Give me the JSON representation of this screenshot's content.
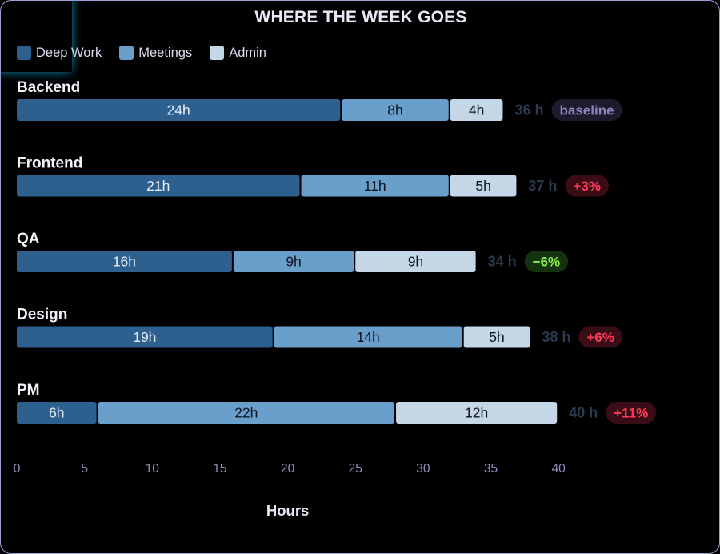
{
  "chart_data": {
    "type": "bar",
    "orientation": "horizontal",
    "stacked": true,
    "title": "WHERE THE WEEK GOES",
    "xlabel": "Hours",
    "ylabel": "",
    "xlim": [
      0,
      40
    ],
    "xticks": [
      0,
      5,
      10,
      15,
      20,
      25,
      30,
      35,
      40
    ],
    "grid": false,
    "legend_position": "top-left",
    "categories": [
      "Backend",
      "Frontend",
      "QA",
      "Design",
      "PM"
    ],
    "series": [
      {
        "name": "Deep Work",
        "color": "#2d5f8f",
        "values": [
          24,
          21,
          16,
          19,
          6
        ],
        "labels": [
          "24h",
          "21h",
          "16h",
          "19h",
          "6h"
        ]
      },
      {
        "name": "Meetings",
        "color": "#6b9fcb",
        "values": [
          8,
          11,
          9,
          14,
          22
        ],
        "labels": [
          "8h",
          "11h",
          "9h",
          "14h",
          "22h"
        ]
      },
      {
        "name": "Admin",
        "color": "#c5d6e6",
        "values": [
          4,
          5,
          9,
          5,
          12
        ],
        "labels": [
          "4h",
          "5h",
          "9h",
          "5h",
          "12h"
        ]
      }
    ],
    "totals": [
      "36 h",
      "37 h",
      "34 h",
      "38 h",
      "40 h"
    ],
    "badges": [
      {
        "text": "baseline",
        "kind": "neutral"
      },
      {
        "text": "+3%",
        "kind": "up"
      },
      {
        "text": "−6%",
        "kind": "down"
      },
      {
        "text": "+6%",
        "kind": "up"
      },
      {
        "text": "+11%",
        "kind": "up"
      }
    ],
    "colors": {
      "badge_neutral_bg": "#1c1a2c",
      "badge_neutral_fg": "#8a86c0",
      "badge_up_bg": "#3a0d16",
      "badge_up_fg": "#ff3b57",
      "badge_down_bg": "#16330f",
      "badge_down_fg": "#8cf34a"
    }
  }
}
